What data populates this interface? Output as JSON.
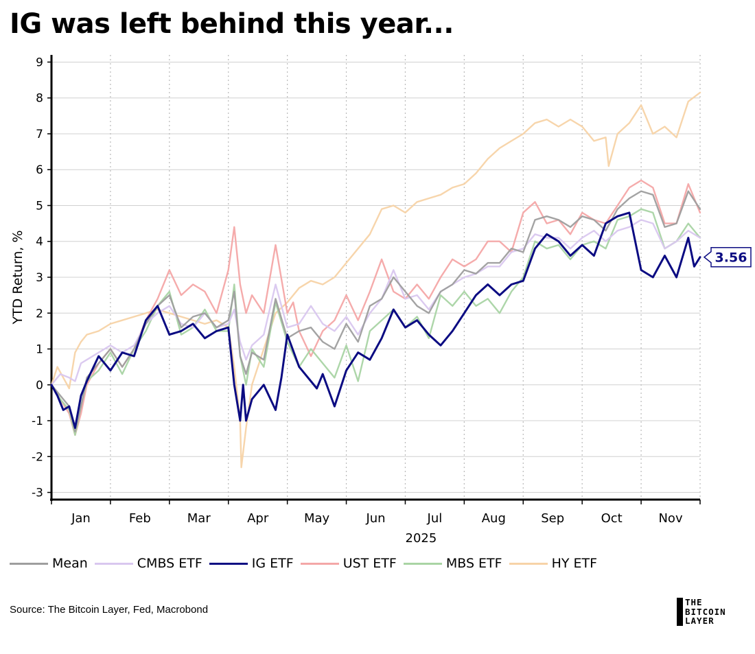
{
  "header": {
    "title": "IG was left behind this year..."
  },
  "source": "Source: The Bitcoin Layer, Fed, Macrobond",
  "brand": {
    "lines": [
      "THE",
      "BITCOIN",
      "LAYER"
    ]
  },
  "legend": [
    {
      "label": "Mean",
      "color": "#9e9e9e"
    },
    {
      "label": "CMBS ETF",
      "color": "#d9c7ef"
    },
    {
      "label": "IG ETF",
      "color": "#0b0b82"
    },
    {
      "label": "UST ETF",
      "color": "#f4a7a7"
    },
    {
      "label": "MBS ETF",
      "color": "#a9d4a4"
    },
    {
      "label": "HY ETF",
      "color": "#f7d3a7"
    }
  ],
  "chart_data": {
    "type": "line",
    "title": "IG was left behind this year...",
    "xlabel": "2025",
    "ylabel": "YTD Return, %",
    "ylim": [
      -3.2,
      9.2
    ],
    "yticks": [
      -3,
      -2,
      -1,
      0,
      1,
      2,
      3,
      4,
      5,
      6,
      7,
      8,
      9
    ],
    "xlim": [
      0,
      11.0
    ],
    "month_ticks": [
      "Jan",
      "Feb",
      "Mar",
      "Apr",
      "May",
      "Jun",
      "Jul",
      "Aug",
      "Sep",
      "Oct",
      "Nov"
    ],
    "grid": true,
    "legend_position": "bottom",
    "end_label": {
      "series": "IG ETF",
      "value": "3.56"
    },
    "series": [
      {
        "name": "HY ETF",
        "color": "#f7d3a7",
        "x": [
          0.0,
          0.1,
          0.2,
          0.3,
          0.4,
          0.5,
          0.6,
          0.8,
          1.0,
          1.2,
          1.4,
          1.6,
          1.8,
          2.0,
          2.2,
          2.4,
          2.6,
          2.8,
          3.0,
          3.1,
          3.2,
          3.22,
          3.3,
          3.4,
          3.6,
          3.8,
          4.0,
          4.2,
          4.4,
          4.6,
          4.8,
          5.0,
          5.2,
          5.4,
          5.6,
          5.8,
          6.0,
          6.2,
          6.4,
          6.6,
          6.8,
          7.0,
          7.2,
          7.4,
          7.6,
          7.8,
          8.0,
          8.2,
          8.4,
          8.6,
          8.8,
          9.0,
          9.2,
          9.4,
          9.45,
          9.6,
          9.8,
          10.0,
          10.2,
          10.4,
          10.6,
          10.8,
          11.0
        ],
        "y": [
          0.0,
          0.5,
          0.2,
          -0.1,
          0.9,
          1.2,
          1.4,
          1.5,
          1.7,
          1.8,
          1.9,
          2.0,
          2.1,
          2.0,
          1.9,
          1.8,
          1.7,
          1.8,
          1.6,
          0.5,
          -1.0,
          -2.3,
          -1.2,
          0.0,
          1.0,
          2.0,
          2.3,
          2.7,
          2.9,
          2.8,
          3.0,
          3.4,
          3.8,
          4.2,
          4.9,
          5.0,
          4.8,
          5.1,
          5.2,
          5.3,
          5.5,
          5.6,
          5.9,
          6.3,
          6.6,
          6.8,
          7.0,
          7.3,
          7.4,
          7.2,
          7.4,
          7.2,
          6.8,
          6.9,
          6.1,
          7.0,
          7.3,
          7.8,
          7.0,
          7.2,
          6.9,
          7.9,
          8.15
        ]
      },
      {
        "name": "UST ETF",
        "color": "#f4a7a7",
        "x": [
          0.0,
          0.15,
          0.3,
          0.4,
          0.5,
          0.6,
          0.8,
          1.0,
          1.2,
          1.4,
          1.6,
          1.8,
          2.0,
          2.2,
          2.4,
          2.6,
          2.8,
          3.0,
          3.1,
          3.2,
          3.3,
          3.4,
          3.6,
          3.8,
          4.0,
          4.1,
          4.2,
          4.4,
          4.6,
          4.8,
          5.0,
          5.2,
          5.4,
          5.6,
          5.8,
          6.0,
          6.2,
          6.4,
          6.6,
          6.8,
          7.0,
          7.2,
          7.4,
          7.6,
          7.8,
          8.0,
          8.2,
          8.4,
          8.6,
          8.8,
          9.0,
          9.2,
          9.4,
          9.6,
          9.8,
          10.0,
          10.2,
          10.4,
          10.6,
          10.8,
          11.0
        ],
        "y": [
          0.0,
          -0.4,
          -0.8,
          -1.4,
          -0.8,
          0.0,
          0.6,
          1.0,
          0.5,
          1.0,
          1.8,
          2.4,
          3.2,
          2.5,
          2.8,
          2.6,
          2.0,
          3.2,
          4.4,
          2.8,
          2.0,
          2.5,
          2.0,
          3.9,
          2.0,
          2.3,
          1.5,
          0.8,
          1.5,
          1.8,
          2.5,
          1.8,
          2.6,
          3.5,
          2.6,
          2.4,
          2.8,
          2.4,
          3.0,
          3.5,
          3.3,
          3.5,
          4.0,
          4.0,
          3.7,
          4.8,
          5.1,
          4.5,
          4.6,
          4.2,
          4.8,
          4.6,
          4.5,
          5.0,
          5.5,
          5.7,
          5.5,
          4.5,
          4.5,
          5.6,
          4.8
        ]
      },
      {
        "name": "MBS ETF",
        "color": "#a9d4a4",
        "x": [
          0.0,
          0.15,
          0.3,
          0.4,
          0.5,
          0.6,
          0.8,
          1.0,
          1.2,
          1.4,
          1.6,
          1.8,
          2.0,
          2.2,
          2.4,
          2.6,
          2.8,
          3.0,
          3.1,
          3.2,
          3.3,
          3.4,
          3.6,
          3.8,
          4.0,
          4.2,
          4.4,
          4.6,
          4.8,
          5.0,
          5.2,
          5.4,
          5.6,
          5.8,
          6.0,
          6.2,
          6.4,
          6.6,
          6.8,
          7.0,
          7.2,
          7.4,
          7.6,
          7.8,
          8.0,
          8.2,
          8.4,
          8.6,
          8.8,
          9.0,
          9.2,
          9.4,
          9.6,
          9.8,
          10.0,
          10.2,
          10.4,
          10.6,
          10.8,
          11.0
        ],
        "y": [
          0.0,
          -0.4,
          -0.7,
          -1.4,
          -0.6,
          0.1,
          0.4,
          0.9,
          0.3,
          1.0,
          1.5,
          2.2,
          2.6,
          1.4,
          1.6,
          2.1,
          1.5,
          1.5,
          2.8,
          0.8,
          0.0,
          1.0,
          0.5,
          2.3,
          1.2,
          0.5,
          1.0,
          0.6,
          0.2,
          1.1,
          0.1,
          1.5,
          1.8,
          2.1,
          1.6,
          1.9,
          1.3,
          2.5,
          2.2,
          2.6,
          2.2,
          2.4,
          2.0,
          2.6,
          3.0,
          4.0,
          3.8,
          3.9,
          3.5,
          3.9,
          4.0,
          3.8,
          4.6,
          4.7,
          4.9,
          4.8,
          3.8,
          4.0,
          4.5,
          4.1
        ]
      },
      {
        "name": "CMBS ETF",
        "color": "#d9c7ef",
        "x": [
          0.0,
          0.15,
          0.3,
          0.4,
          0.5,
          0.6,
          0.8,
          1.0,
          1.2,
          1.4,
          1.6,
          1.8,
          2.0,
          2.2,
          2.4,
          2.6,
          2.8,
          3.0,
          3.1,
          3.2,
          3.3,
          3.4,
          3.6,
          3.8,
          4.0,
          4.2,
          4.4,
          4.6,
          4.8,
          5.0,
          5.2,
          5.4,
          5.6,
          5.8,
          6.0,
          6.2,
          6.4,
          6.6,
          6.8,
          7.0,
          7.2,
          7.4,
          7.6,
          7.8,
          8.0,
          8.2,
          8.4,
          8.6,
          8.8,
          9.0,
          9.2,
          9.4,
          9.6,
          9.8,
          10.0,
          10.2,
          10.4,
          10.6,
          10.8,
          11.0
        ],
        "y": [
          0.0,
          0.3,
          0.2,
          0.1,
          0.6,
          0.7,
          0.9,
          1.1,
          0.9,
          1.1,
          1.7,
          2.0,
          2.2,
          1.7,
          1.6,
          2.0,
          1.6,
          1.7,
          2.1,
          1.2,
          0.7,
          1.1,
          1.4,
          2.8,
          1.6,
          1.7,
          2.2,
          1.7,
          1.5,
          1.9,
          1.4,
          2.0,
          2.4,
          3.2,
          2.4,
          2.5,
          2.1,
          2.6,
          2.8,
          3.0,
          3.1,
          3.3,
          3.3,
          3.7,
          3.8,
          4.2,
          4.1,
          4.1,
          3.8,
          4.1,
          4.3,
          4.0,
          4.3,
          4.4,
          4.6,
          4.5,
          3.8,
          4.0,
          4.3,
          4.1
        ]
      },
      {
        "name": "Mean",
        "color": "#9e9e9e",
        "x": [
          0.0,
          0.15,
          0.3,
          0.4,
          0.5,
          0.6,
          0.8,
          1.0,
          1.2,
          1.4,
          1.6,
          1.8,
          2.0,
          2.2,
          2.4,
          2.6,
          2.8,
          3.0,
          3.1,
          3.2,
          3.3,
          3.4,
          3.6,
          3.8,
          4.0,
          4.2,
          4.4,
          4.6,
          4.8,
          5.0,
          5.2,
          5.4,
          5.6,
          5.8,
          6.0,
          6.2,
          6.4,
          6.6,
          6.8,
          7.0,
          7.2,
          7.4,
          7.6,
          7.8,
          8.0,
          8.2,
          8.4,
          8.6,
          8.8,
          9.0,
          9.2,
          9.4,
          9.6,
          9.8,
          10.0,
          10.2,
          10.4,
          10.6,
          10.8,
          11.0
        ],
        "y": [
          0.0,
          -0.3,
          -0.6,
          -1.3,
          -0.6,
          0.2,
          0.6,
          1.0,
          0.5,
          1.0,
          1.7,
          2.2,
          2.5,
          1.6,
          1.9,
          2.0,
          1.6,
          1.8,
          2.6,
          0.8,
          0.3,
          0.9,
          0.7,
          2.4,
          1.3,
          1.5,
          1.6,
          1.2,
          1.0,
          1.7,
          1.2,
          2.2,
          2.4,
          3.0,
          2.6,
          2.2,
          2.0,
          2.6,
          2.8,
          3.2,
          3.1,
          3.4,
          3.4,
          3.8,
          3.7,
          4.6,
          4.7,
          4.6,
          4.4,
          4.7,
          4.6,
          4.3,
          4.9,
          5.2,
          5.4,
          5.3,
          4.4,
          4.5,
          5.4,
          4.9
        ]
      },
      {
        "name": "IG ETF",
        "color": "#0b0b82",
        "x": [
          0.0,
          0.1,
          0.2,
          0.3,
          0.4,
          0.5,
          0.6,
          0.8,
          1.0,
          1.2,
          1.4,
          1.6,
          1.8,
          2.0,
          2.2,
          2.4,
          2.6,
          2.8,
          3.0,
          3.1,
          3.2,
          3.25,
          3.3,
          3.4,
          3.6,
          3.8,
          3.9,
          4.0,
          4.2,
          4.4,
          4.5,
          4.6,
          4.8,
          5.0,
          5.2,
          5.4,
          5.6,
          5.8,
          6.0,
          6.2,
          6.4,
          6.6,
          6.8,
          7.0,
          7.2,
          7.4,
          7.6,
          7.8,
          8.0,
          8.2,
          8.4,
          8.6,
          8.8,
          9.0,
          9.2,
          9.4,
          9.6,
          9.8,
          10.0,
          10.2,
          10.4,
          10.6,
          10.8,
          10.9,
          11.0
        ],
        "y": [
          0.0,
          -0.3,
          -0.7,
          -0.6,
          -1.2,
          -0.3,
          0.1,
          0.8,
          0.4,
          0.9,
          0.8,
          1.8,
          2.2,
          1.4,
          1.5,
          1.7,
          1.3,
          1.5,
          1.6,
          0.0,
          -1.0,
          0.0,
          -1.0,
          -0.4,
          0.0,
          -0.7,
          0.2,
          1.4,
          0.5,
          0.1,
          -0.1,
          0.3,
          -0.6,
          0.4,
          0.9,
          0.7,
          1.3,
          2.1,
          1.6,
          1.8,
          1.4,
          1.1,
          1.5,
          2.0,
          2.5,
          2.8,
          2.5,
          2.8,
          2.9,
          3.8,
          4.2,
          4.0,
          3.6,
          3.9,
          3.6,
          4.5,
          4.7,
          4.8,
          3.2,
          3.0,
          3.6,
          3.0,
          4.1,
          3.3,
          3.56
        ]
      }
    ]
  }
}
